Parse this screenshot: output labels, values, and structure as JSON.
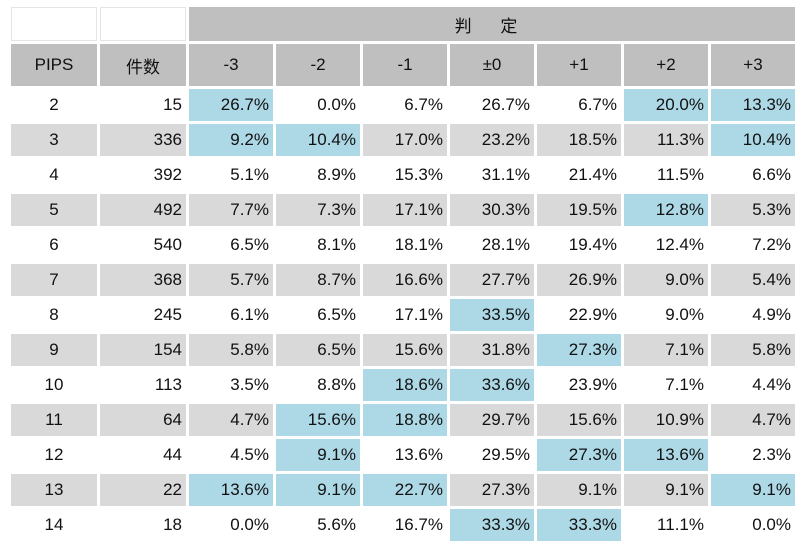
{
  "header": {
    "judge_label": "判 定",
    "pips_label": "PIPS",
    "count_label": "件数",
    "columns": [
      "-3",
      "-2",
      "-1",
      "±0",
      "+1",
      "+2",
      "+3"
    ]
  },
  "colors": {
    "header_bg": "#bfbfbf",
    "row_shade": "#d9d9d9",
    "highlight": "#add8e6"
  },
  "rows": [
    {
      "pips": "2",
      "count": "15",
      "values": [
        "26.7%",
        "0.0%",
        "6.7%",
        "26.7%",
        "6.7%",
        "20.0%",
        "13.3%"
      ],
      "highlight": [
        true,
        false,
        false,
        false,
        false,
        true,
        true
      ],
      "shaded": false
    },
    {
      "pips": "3",
      "count": "336",
      "values": [
        "9.2%",
        "10.4%",
        "17.0%",
        "23.2%",
        "18.5%",
        "11.3%",
        "10.4%"
      ],
      "highlight": [
        true,
        true,
        false,
        false,
        false,
        false,
        true
      ],
      "shaded": true
    },
    {
      "pips": "4",
      "count": "392",
      "values": [
        "5.1%",
        "8.9%",
        "15.3%",
        "31.1%",
        "21.4%",
        "11.5%",
        "6.6%"
      ],
      "highlight": [
        false,
        false,
        false,
        false,
        false,
        false,
        false
      ],
      "shaded": false
    },
    {
      "pips": "5",
      "count": "492",
      "values": [
        "7.7%",
        "7.3%",
        "17.1%",
        "30.3%",
        "19.5%",
        "12.8%",
        "5.3%"
      ],
      "highlight": [
        false,
        false,
        false,
        false,
        false,
        true,
        false
      ],
      "shaded": true
    },
    {
      "pips": "6",
      "count": "540",
      "values": [
        "6.5%",
        "8.1%",
        "18.1%",
        "28.1%",
        "19.4%",
        "12.4%",
        "7.2%"
      ],
      "highlight": [
        false,
        false,
        false,
        false,
        false,
        false,
        false
      ],
      "shaded": false
    },
    {
      "pips": "7",
      "count": "368",
      "values": [
        "5.7%",
        "8.7%",
        "16.6%",
        "27.7%",
        "26.9%",
        "9.0%",
        "5.4%"
      ],
      "highlight": [
        false,
        false,
        false,
        false,
        false,
        false,
        false
      ],
      "shaded": true
    },
    {
      "pips": "8",
      "count": "245",
      "values": [
        "6.1%",
        "6.5%",
        "17.1%",
        "33.5%",
        "22.9%",
        "9.0%",
        "4.9%"
      ],
      "highlight": [
        false,
        false,
        false,
        true,
        false,
        false,
        false
      ],
      "shaded": false
    },
    {
      "pips": "9",
      "count": "154",
      "values": [
        "5.8%",
        "6.5%",
        "15.6%",
        "31.8%",
        "27.3%",
        "7.1%",
        "5.8%"
      ],
      "highlight": [
        false,
        false,
        false,
        false,
        true,
        false,
        false
      ],
      "shaded": true
    },
    {
      "pips": "10",
      "count": "113",
      "values": [
        "3.5%",
        "8.8%",
        "18.6%",
        "33.6%",
        "23.9%",
        "7.1%",
        "4.4%"
      ],
      "highlight": [
        false,
        false,
        true,
        true,
        false,
        false,
        false
      ],
      "shaded": false
    },
    {
      "pips": "11",
      "count": "64",
      "values": [
        "4.7%",
        "15.6%",
        "18.8%",
        "29.7%",
        "15.6%",
        "10.9%",
        "4.7%"
      ],
      "highlight": [
        false,
        true,
        true,
        false,
        false,
        false,
        false
      ],
      "shaded": true
    },
    {
      "pips": "12",
      "count": "44",
      "values": [
        "4.5%",
        "9.1%",
        "13.6%",
        "29.5%",
        "27.3%",
        "13.6%",
        "2.3%"
      ],
      "highlight": [
        false,
        true,
        false,
        false,
        true,
        true,
        false
      ],
      "shaded": false
    },
    {
      "pips": "13",
      "count": "22",
      "values": [
        "13.6%",
        "9.1%",
        "22.7%",
        "27.3%",
        "9.1%",
        "9.1%",
        "9.1%"
      ],
      "highlight": [
        true,
        true,
        true,
        false,
        false,
        false,
        true
      ],
      "shaded": true
    },
    {
      "pips": "14",
      "count": "18",
      "values": [
        "0.0%",
        "5.6%",
        "16.7%",
        "33.3%",
        "33.3%",
        "11.1%",
        "0.0%"
      ],
      "highlight": [
        false,
        false,
        false,
        true,
        true,
        false,
        false
      ],
      "shaded": false
    }
  ]
}
